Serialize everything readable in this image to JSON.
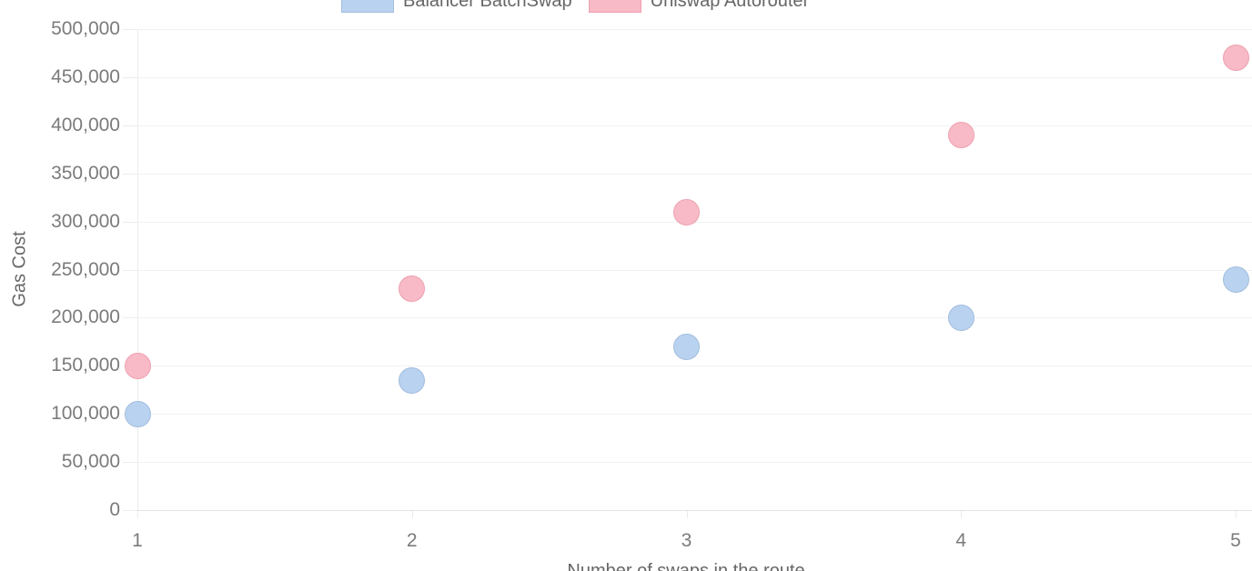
{
  "accent_colors": {
    "balancer_fill": "#b9d2ef",
    "balancer_stroke": "#a3bedd",
    "uniswap_fill": "#f7bac6",
    "uniswap_stroke": "#efa0b1",
    "gridline": "#f2f2f2",
    "tick_text": "#7b7b7b",
    "label_text": "#666666"
  },
  "legend": {
    "items": [
      {
        "label": "Balancer BatchSwap"
      },
      {
        "label": "Uniswap Autorouter"
      }
    ]
  },
  "chart_data": {
    "type": "scatter",
    "title": "",
    "x": [
      1,
      2,
      3,
      4,
      5
    ],
    "xticks_labels": [
      "1",
      "2",
      "3",
      "4",
      "5"
    ],
    "yticks_labels": [
      "0",
      "50,000",
      "100,000",
      "150,000",
      "200,000",
      "250,000",
      "300,000",
      "350,000",
      "400,000",
      "450,000",
      "500,000"
    ],
    "series": [
      {
        "name": "Balancer BatchSwap",
        "fill": "#b9d2ef",
        "stroke": "#a3bedd",
        "values": [
          100000,
          135000,
          170000,
          200000,
          240000
        ]
      },
      {
        "name": "Uniswap Autorouter",
        "fill": "#f7bac6",
        "stroke": "#efa0b1",
        "values": [
          150000,
          230000,
          310000,
          390000,
          470000
        ]
      }
    ],
    "xlabel": "Number of swaps in the route",
    "ylabel": "Gas Cost",
    "ylim": [
      0,
      500000
    ],
    "ytick_step": 50000,
    "grid": true,
    "legend_position": "top"
  }
}
